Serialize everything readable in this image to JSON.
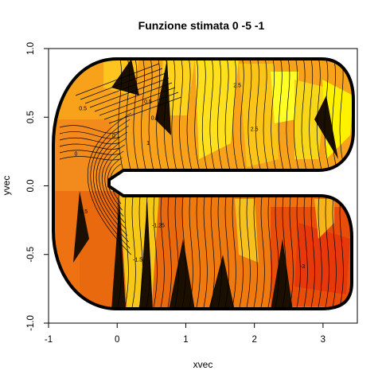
{
  "chart_data": {
    "type": "heatmap",
    "title": "Funzione stimata 0 -5 -1",
    "xlabel": "xvec",
    "ylabel": "yvec",
    "xlim": [
      -1,
      3.5
    ],
    "ylim": [
      -1,
      1
    ],
    "x_ticks": [
      -1,
      0,
      1,
      2,
      3
    ],
    "y_ticks": [
      -1.0,
      -0.5,
      0.0,
      0.5,
      1.0
    ],
    "x_tick_labels": [
      "-1",
      "0",
      "1",
      "2",
      "3"
    ],
    "y_tick_labels": [
      "-1.0",
      "-0.5",
      "0.0",
      "0.5",
      "1.0"
    ],
    "domain_shape": "C-shaped horseshoe domain",
    "color_scale": [
      "#000000",
      "#ff4000",
      "#ff8c00",
      "#ffd700",
      "#ffff00"
    ],
    "contour_labels": [
      {
        "x": 0.45,
        "y": 0.6,
        "text": "0.5"
      },
      {
        "x": 0.55,
        "y": 0.48,
        "text": "0.5"
      },
      {
        "x": -0.5,
        "y": 0.55,
        "text": "0.5"
      },
      {
        "x": -0.05,
        "y": 0.35,
        "text": "0"
      },
      {
        "x": -0.6,
        "y": 0.22,
        "text": "0"
      },
      {
        "x": 0.45,
        "y": 0.3,
        "text": "1"
      },
      {
        "x": 1.75,
        "y": 0.72,
        "text": "2.5"
      },
      {
        "x": 2.0,
        "y": 0.4,
        "text": "2.5"
      },
      {
        "x": -0.5,
        "y": -0.2,
        "text": "-0.5"
      },
      {
        "x": 0.3,
        "y": -0.55,
        "text": "-1.5"
      },
      {
        "x": 2.7,
        "y": -0.6,
        "text": "-3"
      },
      {
        "x": 0.6,
        "y": -0.3,
        "text": "-1.25"
      }
    ]
  }
}
